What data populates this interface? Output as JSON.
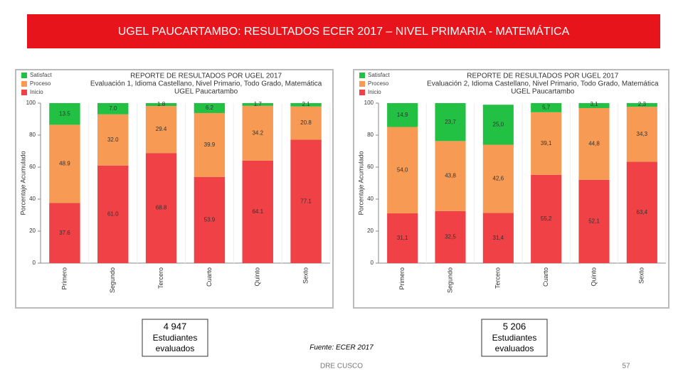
{
  "slide": {
    "title": "UGEL PAUCARTAMBO: RESULTADOS ECER 2017 – NIVEL PRIMARIA - MATEMÁTICA",
    "stats": [
      {
        "value": "4 947",
        "label": "Estudiantes evaluados"
      },
      {
        "value": "5 206",
        "label": "Estudiantes evaluados"
      }
    ],
    "source": "Fuente: ECER 2017",
    "footer": "DRE CUSCO",
    "page": "57"
  },
  "chart_data": [
    {
      "type": "stacked-bar",
      "title": "REPORTE DE RESULTADOS POR UGEL 2017",
      "subtitle": "Evaluación 1, Idioma Castellano, Nivel Primario, Todo Grado, Matemática",
      "subtitle2": "UGEL Paucartambo",
      "y_label": "Porcentaje Acumulado",
      "categories": [
        "Primero",
        "Segundo",
        "Tercero",
        "Cuarto",
        "Quinto",
        "Sexto"
      ],
      "series": [
        {
          "name": "Inicio",
          "color": "#ef4146",
          "values": [
            37.6,
            61.0,
            68.8,
            53.9,
            64.1,
            77.1
          ],
          "value_labels": [
            "37.6",
            "61.0",
            "68.8",
            "53.9",
            "64.1",
            "77.1"
          ]
        },
        {
          "name": "Proceso",
          "color": "#f79a53",
          "values": [
            48.9,
            32.0,
            29.4,
            39.9,
            34.2,
            20.8
          ],
          "value_labels": [
            "48.9",
            "32.0",
            "29.4",
            "39.9",
            "34.2",
            "20.8"
          ]
        },
        {
          "name": "Satisfact",
          "color": "#22c043",
          "values": [
            13.5,
            7.0,
            1.8,
            6.2,
            1.7,
            2.1
          ],
          "value_labels": [
            "13.5",
            "7.0",
            "1.8",
            "6.2",
            "1.7",
            "2.1"
          ]
        }
      ],
      "ylim": [
        0,
        100
      ],
      "yticks": [
        0,
        20,
        40,
        60,
        80,
        100
      ]
    },
    {
      "type": "stacked-bar",
      "title": "REPORTE DE RESULTADOS POR UGEL 2017",
      "subtitle": "Evaluación 2, Idioma Castellano, Nivel Primario, Todo Grado, Matemática",
      "subtitle2": "UGEL Paucartambo",
      "y_label": "Porcentaje Acumulado",
      "categories": [
        "Primero",
        "Segundo",
        "Tercero",
        "Cuarto",
        "Quinto",
        "Sexto"
      ],
      "series": [
        {
          "name": "Inicio",
          "color": "#ef4146",
          "values": [
            31.1,
            32.5,
            31.4,
            55.2,
            52.1,
            63.4
          ],
          "value_labels": [
            "31,1",
            "32,5",
            "31,4",
            "55,2",
            "52,1",
            "63,4"
          ]
        },
        {
          "name": "Proceso",
          "color": "#f79a53",
          "values": [
            54.0,
            43.8,
            42.6,
            39.1,
            44.8,
            34.3
          ],
          "value_labels": [
            "54,0",
            "43,8",
            "42,6",
            "39,1",
            "44,8",
            "34,3"
          ]
        },
        {
          "name": "Satisfact",
          "color": "#22c043",
          "values": [
            14.9,
            23.7,
            25.0,
            5.7,
            3.1,
            2.3
          ],
          "value_labels": [
            "14,9",
            "23,7",
            "25,0",
            "5,7",
            "3,1",
            "2,3"
          ]
        }
      ],
      "ylim": [
        0,
        100
      ],
      "yticks": [
        0,
        20,
        40,
        60,
        80,
        100
      ]
    }
  ]
}
